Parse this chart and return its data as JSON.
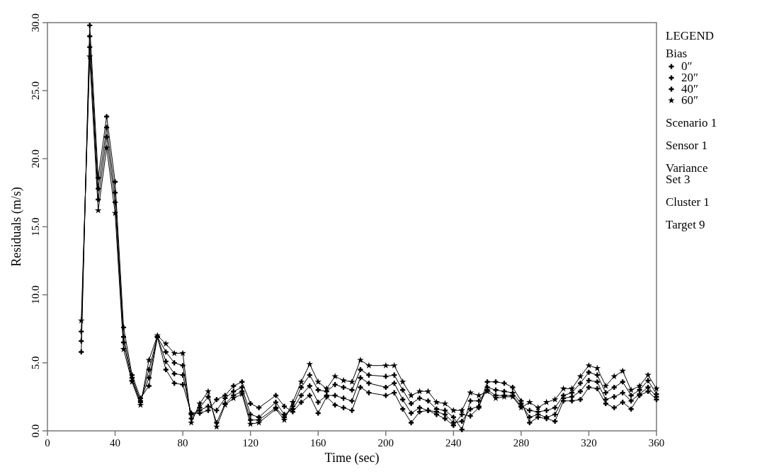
{
  "chart_data": {
    "type": "line",
    "xlabel": "Time (sec)",
    "ylabel": "Residuals (m/s)",
    "legend_title": "Bias",
    "legend": "right",
    "line_style": "solid",
    "xlim": [
      0,
      360
    ],
    "xticks": [
      0,
      40,
      80,
      120,
      160,
      200,
      240,
      280,
      320,
      360
    ],
    "ylim": [
      0,
      30
    ],
    "yticks": [
      {
        "value": 0,
        "label": "0.0"
      },
      {
        "value": 5,
        "label": "5.0"
      },
      {
        "value": 10,
        "label": "10.0"
      },
      {
        "value": 15,
        "label": "15.0"
      },
      {
        "value": 20,
        "label": "20.0"
      },
      {
        "value": 25,
        "label": "25.0"
      },
      {
        "value": 30,
        "label": "30.0"
      }
    ],
    "grid": false,
    "annotations": [
      "LEGEND",
      "Scenario 1",
      "Sensor 1",
      "Variance\nSet 3",
      "Cluster 1",
      "Target 9"
    ],
    "x": [
      20,
      25,
      30,
      35,
      40,
      45,
      50,
      55,
      60,
      65,
      70,
      75,
      80,
      85,
      90,
      95,
      100,
      105,
      110,
      115,
      120,
      125,
      135,
      140,
      145,
      150,
      155,
      160,
      165,
      170,
      175,
      180,
      185,
      190,
      200,
      205,
      210,
      215,
      220,
      225,
      230,
      235,
      240,
      245,
      250,
      255,
      260,
      265,
      270,
      275,
      280,
      285,
      290,
      295,
      300,
      305,
      310,
      315,
      320,
      325,
      330,
      335,
      340,
      345,
      350,
      355,
      360
    ],
    "series": [
      {
        "name": "0″",
        "color": "#000000",
        "marker": "cross",
        "values": [
          5.8,
          29.8,
          18.6,
          23.1,
          18.3,
          7.6,
          4.1,
          2.4,
          3.3,
          6.9,
          4.5,
          3.5,
          3.4,
          1.3,
          1.3,
          1.5,
          2.3,
          2.6,
          3.3,
          3.6,
          2.0,
          1.7,
          2.6,
          1.8,
          1.4,
          2.1,
          2.6,
          1.3,
          2.5,
          1.9,
          1.7,
          1.5,
          3.2,
          2.8,
          2.6,
          2.8,
          1.6,
          0.6,
          1.4,
          1.5,
          1.2,
          0.9,
          0.4,
          1.2,
          1.1,
          1.7,
          3.6,
          3.6,
          3.5,
          3.2,
          2.2,
          0.6,
          1.0,
          0.9,
          0.7,
          2.2,
          2.2,
          2.3,
          3.2,
          3.1,
          2.0,
          1.7,
          2.1,
          1.6,
          2.6,
          2.9,
          2.3
        ]
      },
      {
        "name": "20″",
        "color": "#000000",
        "marker": "cross",
        "values": [
          6.6,
          29.0,
          17.8,
          22.3,
          17.5,
          6.9,
          3.9,
          2.2,
          3.9,
          6.9,
          5.1,
          4.2,
          4.1,
          1.2,
          1.5,
          1.8,
          1.5,
          2.4,
          2.9,
          3.2,
          1.2,
          1.0,
          2.1,
          1.2,
          1.6,
          2.6,
          3.3,
          2.1,
          2.6,
          2.6,
          2.4,
          2.2,
          3.9,
          3.5,
          3.2,
          3.5,
          2.3,
          1.3,
          1.7,
          1.5,
          1.4,
          1.2,
          0.6,
          0.7,
          1.6,
          1.8,
          3.2,
          3.0,
          2.9,
          2.8,
          2.0,
          1.0,
          1.2,
          1.0,
          1.2,
          2.4,
          2.5,
          2.9,
          3.7,
          3.6,
          2.3,
          2.5,
          2.8,
          2.2,
          2.7,
          3.2,
          2.5
        ]
      },
      {
        "name": "40″",
        "color": "#000000",
        "marker": "cross",
        "values": [
          7.3,
          28.2,
          17.0,
          21.6,
          16.8,
          6.5,
          3.7,
          2.1,
          4.5,
          6.9,
          5.8,
          5.0,
          4.8,
          0.9,
          1.7,
          2.5,
          0.6,
          2.0,
          2.6,
          2.9,
          0.8,
          0.8,
          1.7,
          1.0,
          1.8,
          3.2,
          4.1,
          3.0,
          2.9,
          3.4,
          3.2,
          3.0,
          4.5,
          4.1,
          4.0,
          4.1,
          3.0,
          2.0,
          2.4,
          2.2,
          1.6,
          1.5,
          1.0,
          0.1,
          2.2,
          2.2,
          3.0,
          2.6,
          2.6,
          2.6,
          1.8,
          1.5,
          1.4,
          1.5,
          1.7,
          2.6,
          2.8,
          3.5,
          4.3,
          4.1,
          2.8,
          3.2,
          3.6,
          2.6,
          3.0,
          3.7,
          2.7
        ]
      },
      {
        "name": "60″",
        "color": "#000000",
        "marker": "star",
        "values": [
          8.1,
          27.5,
          16.2,
          20.8,
          16.0,
          6.0,
          3.6,
          1.9,
          5.2,
          7.0,
          6.4,
          5.7,
          5.7,
          0.6,
          2.0,
          2.9,
          0.3,
          1.9,
          2.4,
          2.7,
          0.5,
          0.6,
          1.6,
          0.8,
          2.1,
          3.6,
          4.9,
          3.6,
          3.1,
          4.0,
          3.7,
          3.6,
          5.2,
          4.8,
          4.8,
          4.8,
          3.6,
          2.6,
          2.9,
          2.9,
          2.1,
          2.0,
          1.5,
          1.5,
          2.8,
          2.6,
          2.9,
          2.4,
          2.5,
          2.5,
          1.7,
          2.1,
          1.7,
          2.1,
          2.3,
          3.1,
          3.1,
          4.0,
          4.8,
          4.6,
          3.3,
          4.0,
          4.4,
          3.0,
          3.3,
          4.1,
          3.1
        ]
      }
    ]
  }
}
